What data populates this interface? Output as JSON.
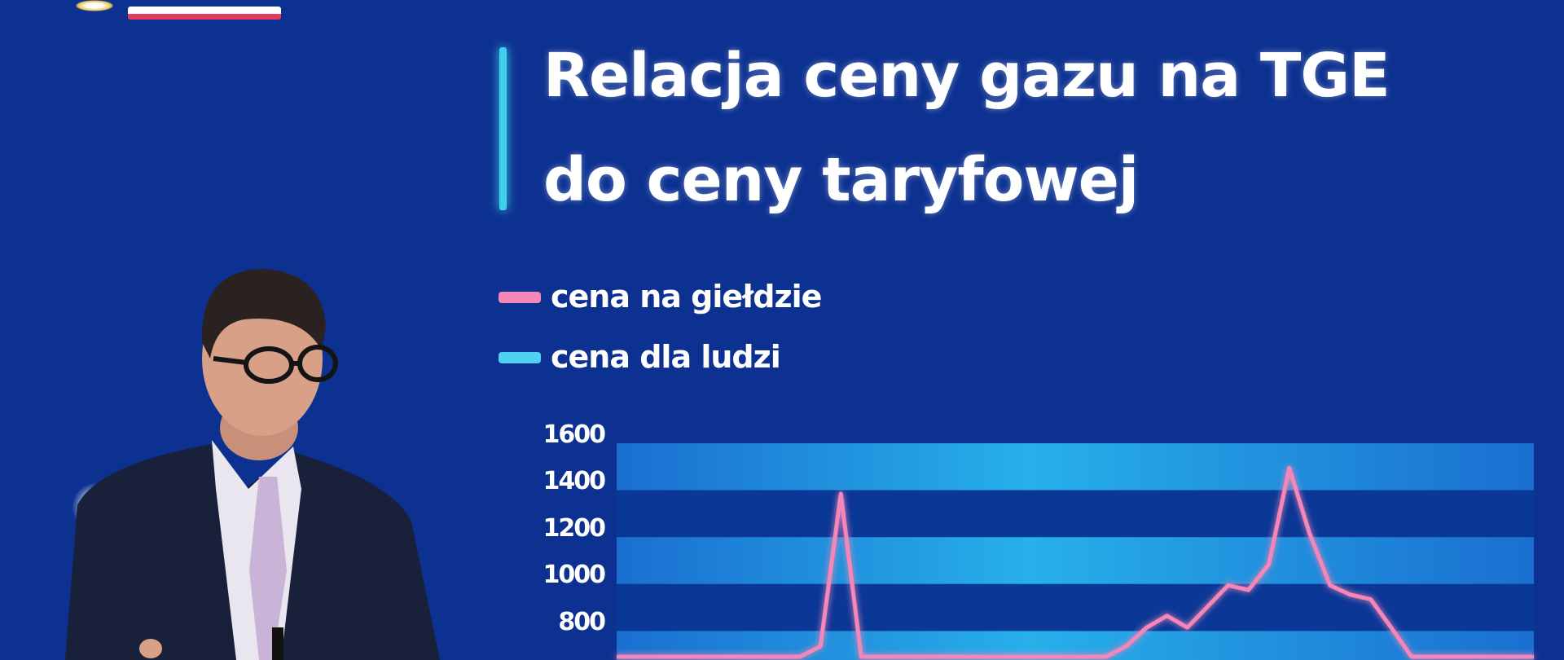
{
  "slide": {
    "title_line1": "Relacja ceny gazu na TGE",
    "title_line2": "do ceny taryfowej",
    "legend": [
      {
        "label": "cena na giełdzie",
        "color": "#f487b8"
      },
      {
        "label": "cena dla ludzi",
        "color": "#4fd2f2"
      }
    ],
    "colors": {
      "background": "#0d3190",
      "band_light": "#1f8fe0",
      "band_dark": "#0b3796",
      "accent": "#3fd0ee"
    }
  },
  "chart_data": {
    "type": "line",
    "y_ticks": [
      "1600",
      "1400",
      "1200",
      "1000",
      "800"
    ],
    "ylim": [
      500,
      1600
    ],
    "grid": "alternating horizontal bands",
    "series": [
      {
        "name": "cena na giełdzie",
        "color": "#f487b8",
        "values": [
          500,
          500,
          500,
          500,
          500,
          500,
          500,
          500,
          500,
          500,
          700,
          1350,
          560,
          500,
          500,
          500,
          500,
          500,
          500,
          500,
          500,
          500,
          500,
          500,
          600,
          700,
          780,
          830,
          780,
          870,
          960,
          940,
          1050,
          1460,
          1180,
          960,
          920,
          900,
          780,
          500,
          500,
          500,
          500,
          500,
          500,
          560
        ]
      }
    ]
  }
}
